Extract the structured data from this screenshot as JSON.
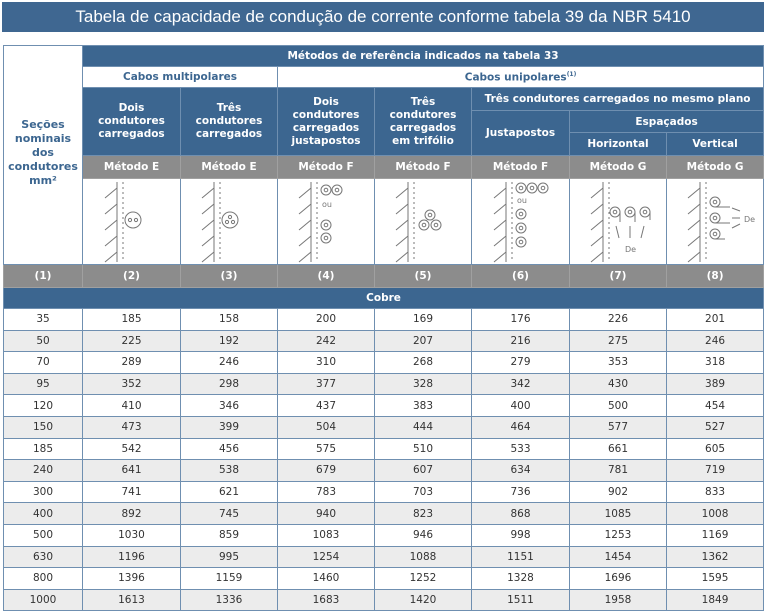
{
  "title": "Tabela de capacidade de condução de corrente conforme tabela 39 da NBR 5410",
  "header": {
    "sections_label": [
      "Seções",
      "nominais",
      "dos",
      "condutores",
      "mm²"
    ],
    "methods_ref": "Métodos de referência indicados na tabela 33",
    "multipolar": "Cabos multipolares",
    "unipolar": "Cabos unipolares",
    "unipolar_note": "(1)",
    "col2": [
      "Dois",
      "condutores",
      "carregados"
    ],
    "col3": [
      "Três",
      "condutores",
      "carregados"
    ],
    "col4": [
      "Dois",
      "condutores",
      "carregados",
      "justapostos"
    ],
    "col5": [
      "Três",
      "condutores",
      "carregados",
      "em trifólio"
    ],
    "same_plane": "Três condutores carregados no mesmo plano",
    "justapostos": "Justapostos",
    "espacados": "Espaçados",
    "horizontal": "Horizontal",
    "vertical": "Vertical",
    "methods": [
      "Método E",
      "Método E",
      "Método F",
      "Método F",
      "Método F",
      "Método G",
      "Método G"
    ],
    "diagram_ou": "ou",
    "diagram_de": "De",
    "column_numbers": [
      "(1)",
      "(2)",
      "(3)",
      "(4)",
      "(5)",
      "(6)",
      "(7)",
      "(8)"
    ],
    "material": "Cobre"
  },
  "rows": [
    [
      "35",
      "185",
      "158",
      "200",
      "169",
      "176",
      "226",
      "201"
    ],
    [
      "50",
      "225",
      "192",
      "242",
      "207",
      "216",
      "275",
      "246"
    ],
    [
      "70",
      "289",
      "246",
      "310",
      "268",
      "279",
      "353",
      "318"
    ],
    [
      "95",
      "352",
      "298",
      "377",
      "328",
      "342",
      "430",
      "389"
    ],
    [
      "120",
      "410",
      "346",
      "437",
      "383",
      "400",
      "500",
      "454"
    ],
    [
      "150",
      "473",
      "399",
      "504",
      "444",
      "464",
      "577",
      "527"
    ],
    [
      "185",
      "542",
      "456",
      "575",
      "510",
      "533",
      "661",
      "605"
    ],
    [
      "240",
      "641",
      "538",
      "679",
      "607",
      "634",
      "781",
      "719"
    ],
    [
      "300",
      "741",
      "621",
      "783",
      "703",
      "736",
      "902",
      "833"
    ],
    [
      "400",
      "892",
      "745",
      "940",
      "823",
      "868",
      "1085",
      "1008"
    ],
    [
      "500",
      "1030",
      "859",
      "1083",
      "946",
      "998",
      "1253",
      "1169"
    ],
    [
      "630",
      "1196",
      "995",
      "1254",
      "1088",
      "1151",
      "1454",
      "1362"
    ],
    [
      "800",
      "1396",
      "1159",
      "1460",
      "1252",
      "1328",
      "1696",
      "1595"
    ],
    [
      "1000",
      "1613",
      "1336",
      "1683",
      "1420",
      "1511",
      "1958",
      "1849"
    ]
  ]
}
